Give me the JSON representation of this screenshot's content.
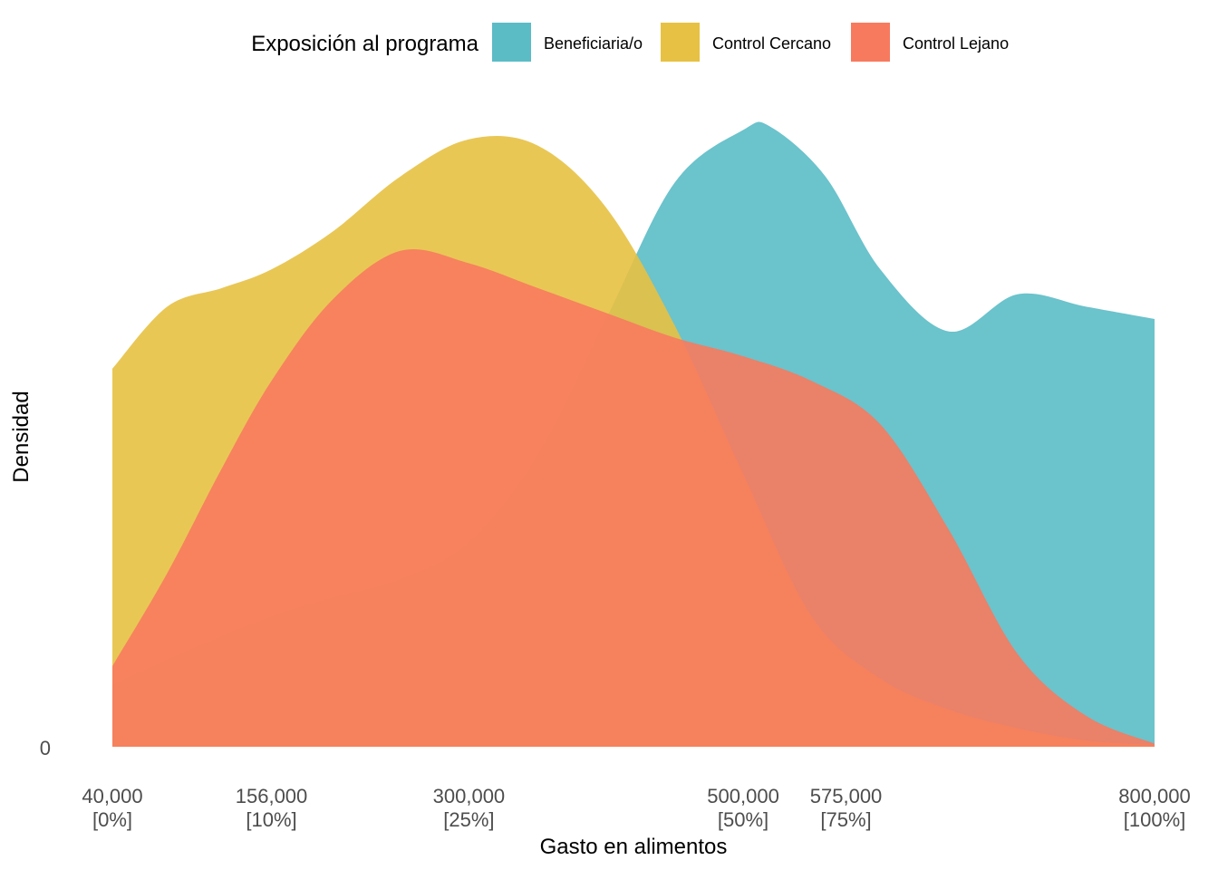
{
  "chart_data": {
    "type": "area",
    "subtype": "density",
    "title": "",
    "xlabel": "Gasto en alimentos",
    "ylabel": "Densidad",
    "xlim": [
      40000,
      800000
    ],
    "ylim_label": "0",
    "x_ticks": [
      {
        "value": 40000,
        "label": "40,000",
        "sublabel": "[0%]"
      },
      {
        "value": 156000,
        "label": "156,000",
        "sublabel": "[10%]"
      },
      {
        "value": 300000,
        "label": "300,000",
        "sublabel": "[25%]"
      },
      {
        "value": 500000,
        "label": "500,000",
        "sublabel": "[50%]"
      },
      {
        "value": 575000,
        "label": "575,000",
        "sublabel": "[75%]"
      },
      {
        "value": 800000,
        "label": "800,000",
        "sublabel": "[100%]"
      }
    ],
    "grid": false,
    "legend": {
      "title": "Exposición al programa",
      "position": "top"
    },
    "density_relative_max": 1.0,
    "series": [
      {
        "name": "Beneficiaria/o",
        "color": "#5BBCC6",
        "x": [
          40000,
          100000,
          156000,
          200000,
          250000,
          300000,
          350000,
          400000,
          450000,
          500000,
          520000,
          560000,
          600000,
          650000,
          700000,
          750000,
          800000
        ],
        "y": [
          0.1,
          0.16,
          0.21,
          0.24,
          0.27,
          0.33,
          0.47,
          0.69,
          0.91,
          0.995,
          1.0,
          0.92,
          0.77,
          0.67,
          0.73,
          0.71,
          0.69
        ]
      },
      {
        "name": "Control Cercano",
        "color": "#E7C143",
        "x": [
          40000,
          80000,
          120000,
          156000,
          200000,
          250000,
          300000,
          350000,
          400000,
          450000,
          500000,
          550000,
          600000,
          650000,
          700000,
          750000,
          800000
        ],
        "y": [
          0.61,
          0.71,
          0.74,
          0.77,
          0.83,
          0.92,
          0.98,
          0.97,
          0.87,
          0.68,
          0.44,
          0.21,
          0.11,
          0.06,
          0.03,
          0.01,
          0.003
        ]
      },
      {
        "name": "Control Lejano",
        "color": "#F87A5E",
        "x": [
          40000,
          80000,
          120000,
          156000,
          200000,
          250000,
          300000,
          350000,
          400000,
          450000,
          500000,
          550000,
          600000,
          650000,
          700000,
          750000,
          800000
        ],
        "y": [
          0.13,
          0.28,
          0.45,
          0.59,
          0.72,
          0.8,
          0.78,
          0.74,
          0.7,
          0.66,
          0.63,
          0.59,
          0.52,
          0.35,
          0.15,
          0.05,
          0.005
        ]
      }
    ]
  }
}
